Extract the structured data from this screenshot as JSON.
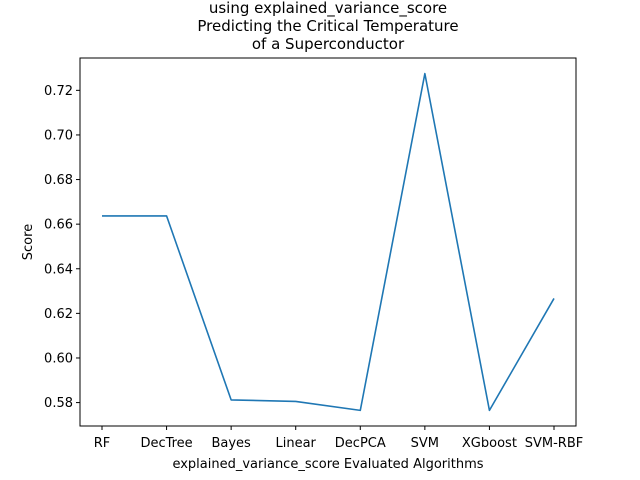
{
  "chart_data": {
    "type": "line",
    "title": [
      "using explained_variance_score",
      "Predicting the Critical Temperature",
      "of a Superconductor"
    ],
    "xlabel": "explained_variance_score Evaluated Algorithms",
    "ylabel": "Score",
    "categories": [
      "RF",
      "DecTree",
      "Bayes",
      "Linear",
      "DecPCA",
      "SVM",
      "XGboost",
      "SVM-RBF"
    ],
    "values": [
      0.6637,
      0.6637,
      0.5812,
      0.5805,
      0.5765,
      0.7275,
      0.5765,
      0.6267
    ],
    "ylim": [
      0.5695,
      0.7345
    ],
    "yticks": [
      0.58,
      0.6,
      0.62,
      0.64,
      0.66,
      0.68,
      0.7,
      0.72
    ],
    "yticklabels": [
      "0.58",
      "0.60",
      "0.62",
      "0.64",
      "0.66",
      "0.68",
      "0.70",
      "0.72"
    ],
    "line_color": "#1f77b4",
    "grid": false,
    "legend": "none"
  }
}
